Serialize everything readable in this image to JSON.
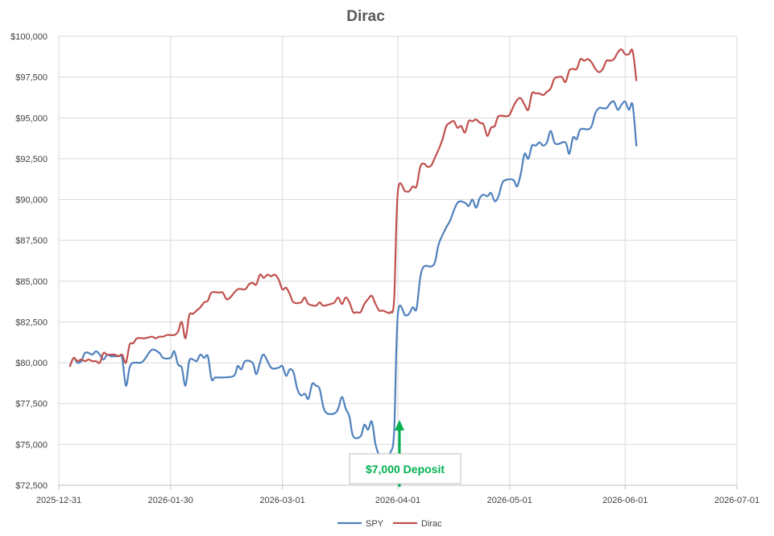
{
  "chart_data": {
    "type": "line",
    "title": "Dirac",
    "xlabel": "",
    "ylabel": "",
    "x_ticks": [
      "2025-12-31",
      "2026-01-30",
      "2026-03-01",
      "2026-04-01",
      "2026-05-01",
      "2026-06-01",
      "2026-07-01"
    ],
    "y_ticks": [
      "$72,500",
      "$75,000",
      "$77,500",
      "$80,000",
      "$82,500",
      "$85,000",
      "$87,500",
      "$90,000",
      "$92,500",
      "$95,000",
      "$97,500",
      "$100,000"
    ],
    "ylim": [
      72500,
      100000
    ],
    "xlim": [
      "2025-12-31",
      "2026-07-01"
    ],
    "grid": true,
    "legend_position": "bottom",
    "annotation": {
      "text": "$7,000 Deposit",
      "date": "2026-04-01",
      "color": "#00b050"
    },
    "series": [
      {
        "name": "SPY",
        "color": "#4f81bd",
        "points": [
          [
            "2026-01-03",
            79800
          ],
          [
            "2026-01-04",
            80300
          ],
          [
            "2026-01-05",
            80000
          ],
          [
            "2026-01-06",
            80100
          ],
          [
            "2026-01-07",
            80600
          ],
          [
            "2026-01-08",
            80600
          ],
          [
            "2026-01-09",
            80500
          ],
          [
            "2026-01-10",
            80700
          ],
          [
            "2026-01-11",
            80500
          ],
          [
            "2026-01-12",
            80200
          ],
          [
            "2026-01-13",
            80500
          ],
          [
            "2026-01-14",
            80400
          ],
          [
            "2026-01-16",
            80400
          ],
          [
            "2026-01-17",
            80300
          ],
          [
            "2026-01-18",
            78600
          ],
          [
            "2026-01-19",
            79700
          ],
          [
            "2026-01-20",
            80000
          ],
          [
            "2026-01-22",
            80000
          ],
          [
            "2026-01-23",
            80200
          ],
          [
            "2026-01-25",
            80800
          ],
          [
            "2026-01-27",
            80600
          ],
          [
            "2026-01-28",
            80300
          ],
          [
            "2026-01-30",
            80300
          ],
          [
            "2026-01-31",
            80700
          ],
          [
            "2026-02-01",
            79900
          ],
          [
            "2026-02-02",
            79700
          ],
          [
            "2026-02-03",
            78600
          ],
          [
            "2026-02-04",
            80100
          ],
          [
            "2026-02-05",
            80200
          ],
          [
            "2026-02-06",
            80100
          ],
          [
            "2026-02-07",
            80500
          ],
          [
            "2026-02-08",
            80300
          ],
          [
            "2026-02-09",
            80400
          ],
          [
            "2026-02-10",
            79000
          ],
          [
            "2026-02-11",
            79100
          ],
          [
            "2026-02-13",
            79100
          ],
          [
            "2026-02-16",
            79200
          ],
          [
            "2026-02-17",
            79800
          ],
          [
            "2026-02-18",
            79600
          ],
          [
            "2026-02-19",
            80100
          ],
          [
            "2026-02-21",
            80000
          ],
          [
            "2026-02-22",
            79300
          ],
          [
            "2026-02-23",
            80000
          ],
          [
            "2026-02-24",
            80500
          ],
          [
            "2026-02-26",
            79700
          ],
          [
            "2026-02-28",
            79700
          ],
          [
            "2026-03-01",
            79800
          ],
          [
            "2026-03-02",
            79200
          ],
          [
            "2026-03-03",
            79600
          ],
          [
            "2026-03-04",
            79400
          ],
          [
            "2026-03-05",
            78400
          ],
          [
            "2026-03-06",
            78000
          ],
          [
            "2026-03-07",
            78100
          ],
          [
            "2026-03-08",
            77800
          ],
          [
            "2026-03-09",
            78700
          ],
          [
            "2026-03-10",
            78600
          ],
          [
            "2026-03-11",
            78400
          ],
          [
            "2026-03-12",
            77300
          ],
          [
            "2026-03-13",
            76900
          ],
          [
            "2026-03-15",
            76900
          ],
          [
            "2026-03-16",
            77200
          ],
          [
            "2026-03-17",
            77900
          ],
          [
            "2026-03-18",
            77200
          ],
          [
            "2026-03-19",
            76700
          ],
          [
            "2026-03-20",
            75500
          ],
          [
            "2026-03-22",
            75500
          ],
          [
            "2026-03-23",
            76200
          ],
          [
            "2026-03-24",
            75900
          ],
          [
            "2026-03-25",
            76400
          ],
          [
            "2026-03-26",
            75000
          ],
          [
            "2026-03-27",
            74300
          ],
          [
            "2026-03-28",
            73900
          ],
          [
            "2026-03-29",
            73900
          ],
          [
            "2026-03-30",
            74500
          ],
          [
            "2026-03-31",
            75800
          ],
          [
            "2026-04-01",
            83000
          ],
          [
            "2026-04-03",
            82900
          ],
          [
            "2026-04-04",
            83000
          ],
          [
            "2026-04-05",
            83400
          ],
          [
            "2026-04-06",
            83300
          ],
          [
            "2026-04-07",
            85200
          ],
          [
            "2026-04-08",
            85900
          ],
          [
            "2026-04-10",
            85900
          ],
          [
            "2026-04-11",
            86200
          ],
          [
            "2026-04-12",
            87300
          ],
          [
            "2026-04-14",
            88300
          ],
          [
            "2026-04-15",
            88700
          ],
          [
            "2026-04-17",
            89800
          ],
          [
            "2026-04-19",
            89800
          ],
          [
            "2026-04-20",
            89600
          ],
          [
            "2026-04-21",
            90000
          ],
          [
            "2026-04-22",
            89500
          ],
          [
            "2026-04-23",
            90100
          ],
          [
            "2026-04-24",
            90300
          ],
          [
            "2026-04-25",
            90200
          ],
          [
            "2026-04-26",
            90400
          ],
          [
            "2026-04-27",
            89900
          ],
          [
            "2026-04-28",
            90200
          ],
          [
            "2026-04-29",
            91000
          ],
          [
            "2026-04-30",
            91200
          ],
          [
            "2026-05-02",
            91200
          ],
          [
            "2026-05-03",
            90800
          ],
          [
            "2026-05-04",
            91600
          ],
          [
            "2026-05-05",
            92800
          ],
          [
            "2026-05-06",
            92500
          ],
          [
            "2026-05-07",
            93300
          ],
          [
            "2026-05-08",
            93300
          ],
          [
            "2026-05-09",
            93500
          ],
          [
            "2026-05-10",
            93300
          ],
          [
            "2026-05-11",
            93500
          ],
          [
            "2026-05-12",
            94200
          ],
          [
            "2026-05-13",
            93500
          ],
          [
            "2026-05-14",
            93400
          ],
          [
            "2026-05-16",
            93500
          ],
          [
            "2026-05-17",
            92800
          ],
          [
            "2026-05-18",
            93800
          ],
          [
            "2026-05-19",
            93700
          ],
          [
            "2026-05-20",
            94300
          ],
          [
            "2026-05-22",
            94300
          ],
          [
            "2026-05-23",
            94500
          ],
          [
            "2026-05-24",
            95300
          ],
          [
            "2026-05-25",
            95600
          ],
          [
            "2026-05-26",
            95600
          ],
          [
            "2026-05-27",
            95600
          ],
          [
            "2026-05-28",
            95900
          ],
          [
            "2026-05-29",
            96000
          ],
          [
            "2026-05-30",
            95500
          ],
          [
            "2026-05-31",
            95800
          ],
          [
            "2026-06-01",
            96000
          ],
          [
            "2026-06-02",
            95500
          ],
          [
            "2026-06-03",
            95800
          ],
          [
            "2026-06-04",
            93300
          ]
        ]
      },
      {
        "name": "Dirac",
        "color": "#c0504d",
        "points": [
          [
            "2026-01-03",
            79800
          ],
          [
            "2026-01-04",
            80300
          ],
          [
            "2026-01-05",
            80100
          ],
          [
            "2026-01-06",
            80200
          ],
          [
            "2026-01-07",
            80100
          ],
          [
            "2026-01-08",
            80200
          ],
          [
            "2026-01-09",
            80100
          ],
          [
            "2026-01-10",
            80100
          ],
          [
            "2026-01-11",
            80000
          ],
          [
            "2026-01-12",
            80600
          ],
          [
            "2026-01-13",
            80500
          ],
          [
            "2026-01-15",
            80500
          ],
          [
            "2026-01-16",
            80400
          ],
          [
            "2026-01-17",
            80500
          ],
          [
            "2026-01-18",
            80000
          ],
          [
            "2026-01-19",
            81100
          ],
          [
            "2026-01-20",
            81200
          ],
          [
            "2026-01-21",
            81500
          ],
          [
            "2026-01-23",
            81500
          ],
          [
            "2026-01-25",
            81600
          ],
          [
            "2026-01-26",
            81500
          ],
          [
            "2026-01-27",
            81600
          ],
          [
            "2026-01-28",
            81600
          ],
          [
            "2026-01-29",
            81700
          ],
          [
            "2026-01-30",
            81700
          ],
          [
            "2026-01-31",
            81700
          ],
          [
            "2026-02-01",
            81900
          ],
          [
            "2026-02-02",
            82500
          ],
          [
            "2026-02-03",
            81500
          ],
          [
            "2026-02-04",
            82900
          ],
          [
            "2026-02-05",
            83000
          ],
          [
            "2026-02-06",
            83200
          ],
          [
            "2026-02-07",
            83400
          ],
          [
            "2026-02-08",
            83700
          ],
          [
            "2026-02-09",
            83800
          ],
          [
            "2026-02-10",
            84300
          ],
          [
            "2026-02-12",
            84300
          ],
          [
            "2026-02-13",
            84300
          ],
          [
            "2026-02-14",
            83900
          ],
          [
            "2026-02-15",
            84000
          ],
          [
            "2026-02-17",
            84500
          ],
          [
            "2026-02-19",
            84500
          ],
          [
            "2026-02-20",
            84800
          ],
          [
            "2026-02-21",
            84900
          ],
          [
            "2026-02-22",
            84800
          ],
          [
            "2026-02-23",
            85400
          ],
          [
            "2026-02-24",
            85200
          ],
          [
            "2026-02-25",
            85400
          ],
          [
            "2026-02-26",
            85300
          ],
          [
            "2026-02-27",
            85400
          ],
          [
            "2026-02-28",
            85100
          ],
          [
            "2026-03-01",
            84500
          ],
          [
            "2026-03-02",
            84600
          ],
          [
            "2026-03-03",
            84200
          ],
          [
            "2026-03-04",
            83700
          ],
          [
            "2026-03-06",
            83700
          ],
          [
            "2026-03-07",
            84000
          ],
          [
            "2026-03-08",
            83600
          ],
          [
            "2026-03-10",
            83500
          ],
          [
            "2026-03-11",
            83700
          ],
          [
            "2026-03-12",
            83500
          ],
          [
            "2026-03-14",
            83600
          ],
          [
            "2026-03-15",
            83700
          ],
          [
            "2026-03-16",
            84000
          ],
          [
            "2026-03-17",
            83600
          ],
          [
            "2026-03-18",
            84000
          ],
          [
            "2026-03-19",
            83700
          ],
          [
            "2026-03-20",
            83100
          ],
          [
            "2026-03-21",
            83100
          ],
          [
            "2026-03-22",
            83100
          ],
          [
            "2026-03-23",
            83600
          ],
          [
            "2026-03-24",
            83900
          ],
          [
            "2026-03-25",
            84100
          ],
          [
            "2026-03-26",
            83600
          ],
          [
            "2026-03-27",
            83200
          ],
          [
            "2026-03-28",
            83200
          ],
          [
            "2026-03-29",
            83100
          ],
          [
            "2026-03-30",
            83100
          ],
          [
            "2026-03-31",
            83900
          ],
          [
            "2026-04-01",
            90500
          ],
          [
            "2026-04-03",
            90500
          ],
          [
            "2026-04-04",
            90500
          ],
          [
            "2026-04-05",
            90800
          ],
          [
            "2026-04-06",
            90800
          ],
          [
            "2026-04-07",
            92000
          ],
          [
            "2026-04-08",
            92200
          ],
          [
            "2026-04-09",
            92000
          ],
          [
            "2026-04-10",
            92100
          ],
          [
            "2026-04-11",
            92600
          ],
          [
            "2026-04-12",
            93100
          ],
          [
            "2026-04-13",
            93700
          ],
          [
            "2026-04-14",
            94500
          ],
          [
            "2026-04-15",
            94700
          ],
          [
            "2026-04-16",
            94800
          ],
          [
            "2026-04-17",
            94400
          ],
          [
            "2026-04-18",
            94500
          ],
          [
            "2026-04-19",
            94100
          ],
          [
            "2026-04-20",
            94800
          ],
          [
            "2026-04-21",
            94800
          ],
          [
            "2026-04-22",
            94900
          ],
          [
            "2026-04-23",
            94700
          ],
          [
            "2026-04-24",
            94600
          ],
          [
            "2026-04-25",
            93900
          ],
          [
            "2026-04-26",
            94400
          ],
          [
            "2026-04-27",
            94500
          ],
          [
            "2026-04-28",
            95100
          ],
          [
            "2026-04-30",
            95100
          ],
          [
            "2026-05-01",
            95200
          ],
          [
            "2026-05-02",
            95700
          ],
          [
            "2026-05-03",
            96100
          ],
          [
            "2026-05-04",
            96200
          ],
          [
            "2026-05-05",
            95800
          ],
          [
            "2026-05-06",
            95500
          ],
          [
            "2026-05-07",
            96500
          ],
          [
            "2026-05-08",
            96500
          ],
          [
            "2026-05-09",
            96500
          ],
          [
            "2026-05-10",
            96400
          ],
          [
            "2026-05-11",
            96600
          ],
          [
            "2026-05-12",
            96800
          ],
          [
            "2026-05-13",
            97400
          ],
          [
            "2026-05-14",
            97500
          ],
          [
            "2026-05-15",
            97500
          ],
          [
            "2026-05-16",
            97200
          ],
          [
            "2026-05-17",
            97900
          ],
          [
            "2026-05-18",
            98000
          ],
          [
            "2026-05-19",
            98000
          ],
          [
            "2026-05-20",
            98600
          ],
          [
            "2026-05-21",
            98500
          ],
          [
            "2026-05-22",
            98600
          ],
          [
            "2026-05-23",
            98400
          ],
          [
            "2026-05-24",
            98000
          ],
          [
            "2026-05-25",
            97800
          ],
          [
            "2026-05-26",
            98000
          ],
          [
            "2026-05-27",
            98500
          ],
          [
            "2026-05-28",
            98500
          ],
          [
            "2026-05-29",
            98600
          ],
          [
            "2026-05-30",
            99000
          ],
          [
            "2026-05-31",
            99200
          ],
          [
            "2026-06-01",
            98900
          ],
          [
            "2026-06-02",
            98900
          ],
          [
            "2026-06-03",
            99100
          ],
          [
            "2026-06-04",
            97300
          ]
        ]
      }
    ]
  }
}
